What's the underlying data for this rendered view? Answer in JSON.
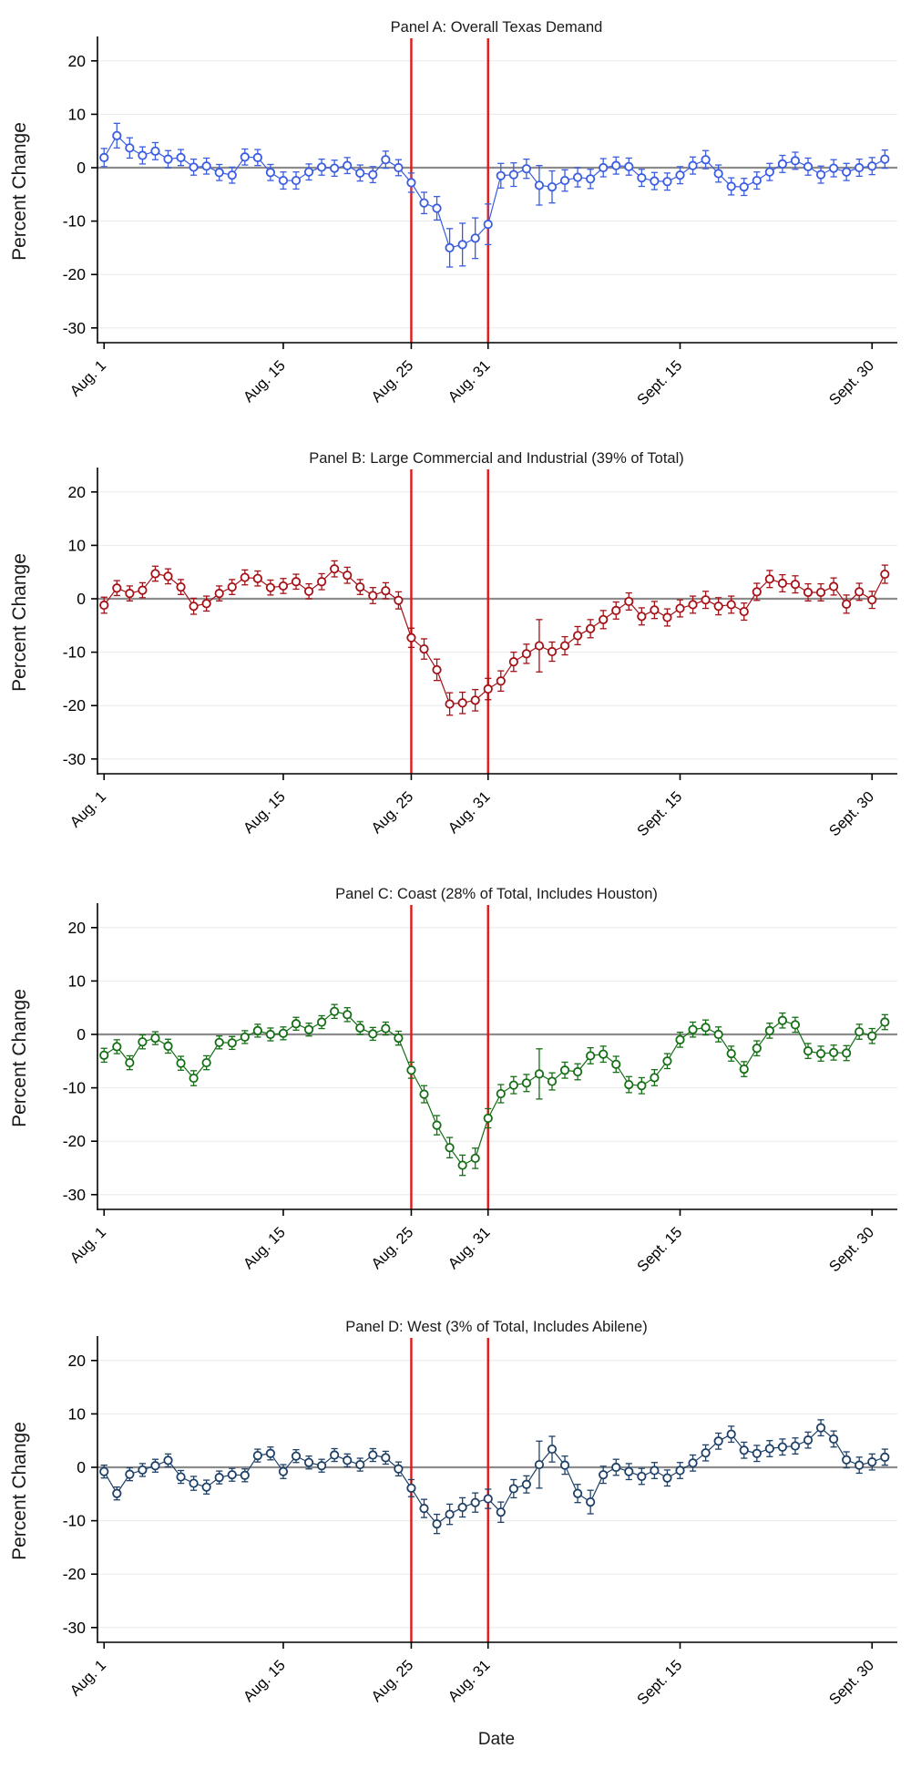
{
  "figure": {
    "xlabel": "Date",
    "ylabel": "Percent Change",
    "background_color": "#ffffff",
    "grid_color": "#ececec",
    "zero_line_color": "#8c8c8c",
    "axis_color": "#000000",
    "event_line_color": "#e01818",
    "grid": true,
    "legend": "none",
    "y_range": [
      -32.6,
      24.0
    ],
    "y_ticks": [
      20,
      10,
      0,
      -10,
      -20,
      -30
    ],
    "x_tick_labels": [
      "Aug. 1",
      "Aug. 15",
      "Aug. 25",
      "Aug. 31",
      "Sept. 15",
      "Sept. 30"
    ],
    "x_tick_days": [
      0,
      14,
      24,
      30,
      45,
      60
    ],
    "event_lines": [
      {
        "label": "Aug. 25",
        "day": 24
      },
      {
        "label": "Aug. 31",
        "day": 30
      }
    ]
  },
  "dates": [
    "Aug. 1",
    "Aug. 2",
    "Aug. 3",
    "Aug. 4",
    "Aug. 5",
    "Aug. 6",
    "Aug. 7",
    "Aug. 8",
    "Aug. 9",
    "Aug. 10",
    "Aug. 11",
    "Aug. 12",
    "Aug. 13",
    "Aug. 14",
    "Aug. 15",
    "Aug. 16",
    "Aug. 17",
    "Aug. 18",
    "Aug. 19",
    "Aug. 20",
    "Aug. 21",
    "Aug. 22",
    "Aug. 23",
    "Aug. 24",
    "Aug. 25",
    "Aug. 26",
    "Aug. 27",
    "Aug. 28",
    "Aug. 29",
    "Aug. 30",
    "Aug. 31",
    "Sept. 1",
    "Sept. 2",
    "Sept. 3",
    "Sept. 4",
    "Sept. 5",
    "Sept. 6",
    "Sept. 7",
    "Sept. 8",
    "Sept. 9",
    "Sept. 10",
    "Sept. 11",
    "Sept. 12",
    "Sept. 13",
    "Sept. 14",
    "Sept. 15",
    "Sept. 16",
    "Sept. 17",
    "Sept. 18",
    "Sept. 19",
    "Sept. 20",
    "Sept. 21",
    "Sept. 22",
    "Sept. 23",
    "Sept. 24",
    "Sept. 25",
    "Sept. 26",
    "Sept. 27",
    "Sept. 28",
    "Sept. 29",
    "Sept. 30",
    "Oct. 1"
  ],
  "chart_data": [
    {
      "type": "line",
      "title": "Panel A: Overall Texas Demand",
      "color": "#3a5ce0",
      "marker": "hollow-circle",
      "error_bars": true,
      "values": [
        1.9,
        6.0,
        3.7,
        2.3,
        3.1,
        1.6,
        1.9,
        0.1,
        0.3,
        -0.9,
        -1.4,
        2.0,
        1.9,
        -0.9,
        -2.4,
        -2.4,
        -0.8,
        0.1,
        -0.1,
        0.4,
        -1.0,
        -1.3,
        1.5,
        0.0,
        -2.8,
        -6.6,
        -7.6,
        -15.0,
        -14.4,
        -13.2,
        -10.6,
        -1.5,
        -1.3,
        -0.2,
        -3.3,
        -3.6,
        -2.4,
        -1.8,
        -2.1,
        0.0,
        0.4,
        0.2,
        -1.9,
        -2.5,
        -2.6,
        -1.4,
        0.4,
        1.5,
        -1.1,
        -3.5,
        -3.6,
        -2.4,
        -0.8,
        0.7,
        1.3,
        0.2,
        -1.3,
        -0.1,
        -0.8,
        0.0,
        0.3,
        1.6
      ],
      "ci": [
        1.7,
        2.3,
        1.9,
        1.6,
        1.6,
        1.6,
        1.5,
        1.5,
        1.5,
        1.5,
        1.5,
        1.5,
        1.5,
        1.5,
        1.6,
        1.6,
        1.5,
        1.5,
        1.5,
        1.5,
        1.5,
        1.5,
        1.6,
        1.5,
        1.8,
        2.0,
        2.2,
        3.6,
        4.0,
        3.8,
        3.8,
        2.3,
        2.2,
        1.8,
        3.7,
        3.0,
        2.0,
        1.8,
        1.8,
        1.7,
        1.6,
        1.6,
        1.6,
        1.6,
        1.6,
        1.6,
        1.6,
        1.7,
        1.6,
        1.6,
        1.6,
        1.6,
        1.6,
        1.6,
        1.6,
        1.6,
        1.6,
        1.6,
        1.6,
        1.6,
        1.6,
        1.7
      ]
    },
    {
      "type": "line",
      "title": "Panel B: Large Commercial and Industrial (39% of Total)",
      "color": "#a41117",
      "marker": "hollow-circle",
      "error_bars": true,
      "values": [
        -1.2,
        2.0,
        1.0,
        1.6,
        4.7,
        4.2,
        2.2,
        -1.4,
        -0.9,
        1.0,
        2.2,
        4.0,
        3.8,
        2.1,
        2.4,
        3.2,
        1.4,
        3.2,
        5.6,
        4.4,
        2.2,
        0.6,
        1.5,
        -0.3,
        -7.3,
        -9.4,
        -13.3,
        -19.7,
        -19.5,
        -19.0,
        -16.9,
        -15.4,
        -11.8,
        -10.3,
        -8.8,
        -9.9,
        -8.8,
        -6.9,
        -5.6,
        -3.9,
        -2.2,
        -0.5,
        -3.3,
        -2.1,
        -3.5,
        -1.8,
        -1.1,
        -0.2,
        -1.4,
        -1.1,
        -2.4,
        1.3,
        3.7,
        2.9,
        2.7,
        1.2,
        1.2,
        2.3,
        -1.0,
        1.3,
        -0.2,
        4.6
      ],
      "ci": [
        1.5,
        1.4,
        1.4,
        1.4,
        1.4,
        1.4,
        1.4,
        1.5,
        1.4,
        1.4,
        1.4,
        1.4,
        1.4,
        1.4,
        1.4,
        1.4,
        1.4,
        1.5,
        1.5,
        1.5,
        1.4,
        1.5,
        1.5,
        1.6,
        1.8,
        1.9,
        2.0,
        2.1,
        2.0,
        2.0,
        2.0,
        1.9,
        1.8,
        1.8,
        4.9,
        1.8,
        1.7,
        1.7,
        1.7,
        1.7,
        1.6,
        1.6,
        1.6,
        1.6,
        1.6,
        1.6,
        1.6,
        1.6,
        1.6,
        1.6,
        1.6,
        1.6,
        1.6,
        1.6,
        1.6,
        1.6,
        1.6,
        1.6,
        1.7,
        1.6,
        1.6,
        1.7
      ]
    },
    {
      "type": "line",
      "title": "Panel C: Coast (28% of Total, Includes Houston)",
      "color": "#156e15",
      "marker": "hollow-circle",
      "error_bars": true,
      "values": [
        -3.9,
        -2.3,
        -5.3,
        -1.4,
        -0.7,
        -2.2,
        -5.4,
        -8.2,
        -5.3,
        -1.5,
        -1.6,
        -0.5,
        0.7,
        0.0,
        0.2,
        2.0,
        0.9,
        2.3,
        4.3,
        3.7,
        1.2,
        0.1,
        1.1,
        -0.7,
        -6.7,
        -11.2,
        -17.0,
        -21.2,
        -24.5,
        -23.2,
        -15.7,
        -11.1,
        -9.5,
        -9.1,
        -7.4,
        -8.8,
        -6.7,
        -7.0,
        -4.0,
        -3.7,
        -5.6,
        -9.4,
        -9.6,
        -8.1,
        -5.0,
        -1.0,
        0.9,
        1.3,
        0.0,
        -3.6,
        -6.5,
        -2.6,
        0.7,
        2.6,
        1.8,
        -3.1,
        -3.6,
        -3.4,
        -3.5,
        0.5,
        -0.3,
        2.3
      ],
      "ci": [
        1.3,
        1.3,
        1.3,
        1.3,
        1.2,
        1.3,
        1.3,
        1.4,
        1.3,
        1.2,
        1.2,
        1.2,
        1.2,
        1.2,
        1.2,
        1.2,
        1.2,
        1.2,
        1.3,
        1.3,
        1.2,
        1.2,
        1.2,
        1.3,
        1.5,
        1.6,
        1.8,
        1.9,
        1.9,
        1.9,
        1.8,
        1.7,
        1.6,
        1.6,
        4.7,
        1.6,
        1.5,
        1.5,
        1.5,
        1.5,
        1.5,
        1.5,
        1.5,
        1.5,
        1.4,
        1.4,
        1.4,
        1.4,
        1.4,
        1.4,
        1.4,
        1.4,
        1.4,
        1.4,
        1.4,
        1.4,
        1.4,
        1.4,
        1.4,
        1.4,
        1.4,
        1.4
      ]
    },
    {
      "type": "line",
      "title": "Panel D: West (3% of Total, Includes Abilene)",
      "color": "#1e4066",
      "marker": "hollow-circle",
      "error_bars": true,
      "values": [
        -0.8,
        -4.9,
        -1.3,
        -0.5,
        0.3,
        1.3,
        -1.8,
        -3.0,
        -3.7,
        -1.9,
        -1.4,
        -1.5,
        2.2,
        2.6,
        -0.8,
        2.1,
        0.9,
        0.3,
        2.3,
        1.3,
        0.5,
        2.3,
        1.8,
        -0.3,
        -3.9,
        -7.7,
        -10.6,
        -8.8,
        -7.5,
        -6.6,
        -5.9,
        -8.4,
        -4.0,
        -3.2,
        0.5,
        3.4,
        0.4,
        -4.9,
        -6.5,
        -1.4,
        0.0,
        -0.8,
        -1.7,
        -0.6,
        -2.0,
        -0.6,
        0.8,
        2.7,
        4.9,
        6.2,
        3.2,
        2.6,
        3.5,
        3.8,
        4.0,
        5.1,
        7.4,
        5.3,
        1.4,
        0.4,
        1.0,
        1.9
      ],
      "ci": [
        1.2,
        1.2,
        1.2,
        1.2,
        1.2,
        1.2,
        1.2,
        1.3,
        1.3,
        1.2,
        1.2,
        1.2,
        1.2,
        1.2,
        1.3,
        1.2,
        1.2,
        1.2,
        1.2,
        1.2,
        1.2,
        1.2,
        1.2,
        1.3,
        1.6,
        1.7,
        1.8,
        1.9,
        1.8,
        1.8,
        1.8,
        1.9,
        1.7,
        1.6,
        4.4,
        2.4,
        1.7,
        1.7,
        2.2,
        1.6,
        1.5,
        1.5,
        1.5,
        1.5,
        1.5,
        1.5,
        1.5,
        1.5,
        1.5,
        1.5,
        1.5,
        1.5,
        1.5,
        1.5,
        1.5,
        1.5,
        1.5,
        1.5,
        1.5,
        1.5,
        1.5,
        1.5
      ]
    }
  ]
}
